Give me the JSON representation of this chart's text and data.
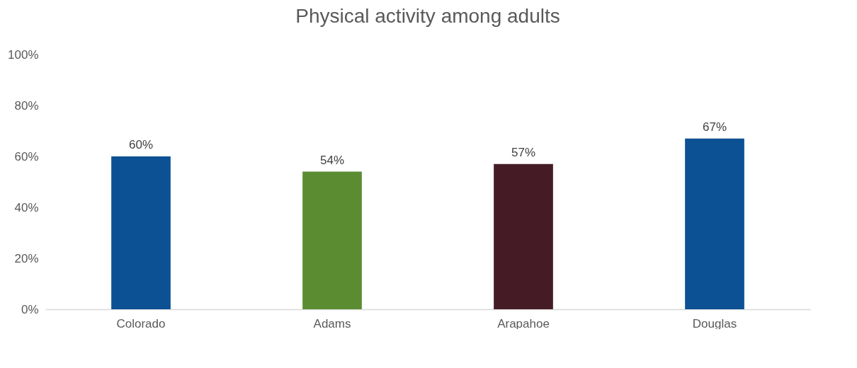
{
  "chart_data": {
    "type": "bar",
    "title": "Physical activity among adults",
    "categories": [
      "Colorado",
      "Adams",
      "Arapahoe",
      "Douglas"
    ],
    "values": [
      60,
      54,
      57,
      67
    ],
    "colors": [
      "#0c5194",
      "#5b8c32",
      "#451c25",
      "#0c5194"
    ],
    "value_labels": [
      "60%",
      "54%",
      "57%",
      "67%"
    ],
    "ylim": [
      0,
      100
    ],
    "yticks": [
      {
        "value": 0,
        "label": "0%"
      },
      {
        "value": 20,
        "label": "20%"
      },
      {
        "value": 40,
        "label": "40%"
      },
      {
        "value": 60,
        "label": "60%"
      },
      {
        "value": 80,
        "label": "80%"
      },
      {
        "value": 100,
        "label": "100%"
      }
    ],
    "grid": false
  }
}
